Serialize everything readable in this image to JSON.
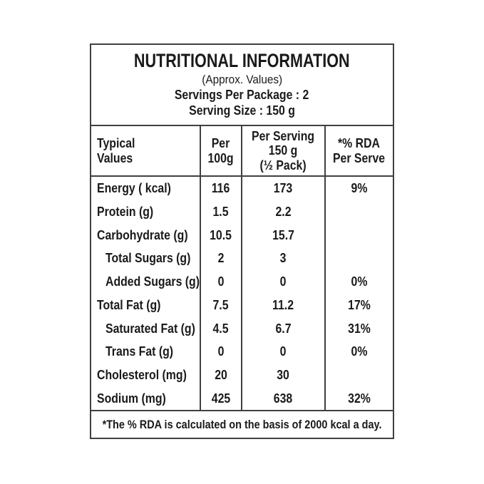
{
  "panel": {
    "header": {
      "title": "NUTRITIONAL INFORMATION",
      "subtitle": "(Approx. Values)",
      "servings_per_package": "Servings Per Package : 2",
      "serving_size": "Serving Size : 150 g"
    },
    "columns": [
      {
        "lines": [
          "Typical",
          "Values"
        ]
      },
      {
        "lines": [
          "Per",
          "100g"
        ]
      },
      {
        "lines": [
          "Per Serving",
          "150 g",
          "(½ Pack)"
        ]
      },
      {
        "lines": [
          "*% RDA",
          "Per Serve"
        ]
      }
    ],
    "rows": [
      {
        "label": "Energy ( kcal)",
        "indent": false,
        "per_100g": "116",
        "per_serving": "173",
        "rda": "9%"
      },
      {
        "label": "Protein (g)",
        "indent": false,
        "per_100g": "1.5",
        "per_serving": "2.2",
        "rda": ""
      },
      {
        "label": "Carbohydrate (g)",
        "indent": false,
        "per_100g": "10.5",
        "per_serving": "15.7",
        "rda": ""
      },
      {
        "label": "Total Sugars (g)",
        "indent": true,
        "per_100g": "2",
        "per_serving": "3",
        "rda": ""
      },
      {
        "label": "Added Sugars (g)",
        "indent": true,
        "per_100g": "0",
        "per_serving": "0",
        "rda": "0%"
      },
      {
        "label": "Total Fat (g)",
        "indent": false,
        "per_100g": "7.5",
        "per_serving": "11.2",
        "rda": "17%"
      },
      {
        "label": "Saturated Fat (g)",
        "indent": true,
        "per_100g": "4.5",
        "per_serving": "6.7",
        "rda": "31%"
      },
      {
        "label": "Trans Fat (g)",
        "indent": true,
        "per_100g": "0",
        "per_serving": "0",
        "rda": "0%"
      },
      {
        "label": "Cholesterol (mg)",
        "indent": false,
        "per_100g": "20",
        "per_serving": "30",
        "rda": ""
      },
      {
        "label": "Sodium (mg)",
        "indent": false,
        "per_100g": "425",
        "per_serving": "638",
        "rda": "32%"
      }
    ],
    "footnote": "*The % RDA is calculated on the basis of 2000 kcal a day."
  },
  "colors": {
    "text": "#1a1a1a",
    "line": "#404040",
    "background": "#ffffff"
  }
}
